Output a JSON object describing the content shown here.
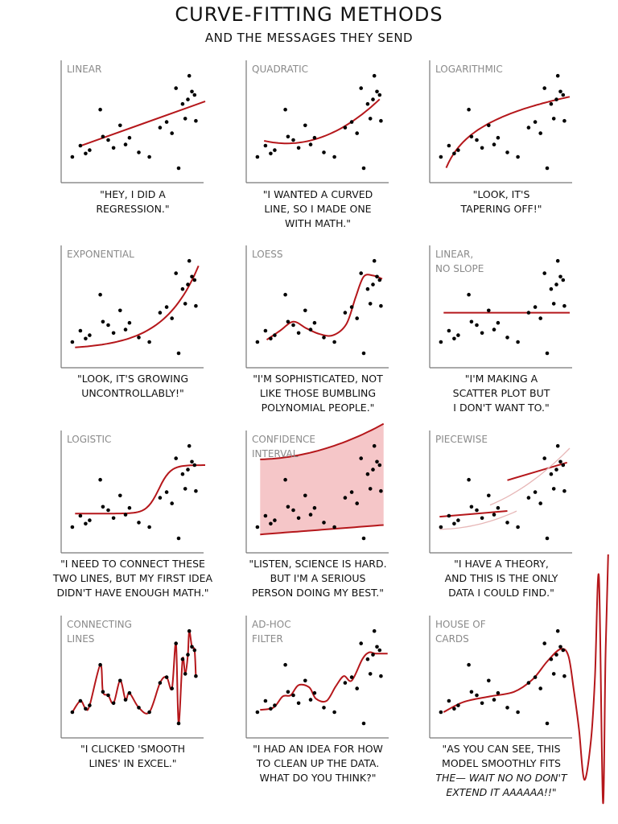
{
  "header": {
    "title": "CURVE-FITTING METHODS",
    "subtitle": "AND THE MESSAGES THEY SEND"
  },
  "colors": {
    "fit_line": "#b5171b",
    "band": "#f5c6c8",
    "points": "#000000",
    "axis": "#777777",
    "label": "#8a8a8a"
  },
  "panels": [
    {
      "label": "LINEAR",
      "caption": [
        "\"HEY, I DID A",
        "REGRESSION.\""
      ],
      "fit": "linear"
    },
    {
      "label": "QUADRATIC",
      "caption": [
        "\"I WANTED A CURVED",
        "LINE, SO I MADE ONE",
        "WITH MATH.\""
      ],
      "fit": "quadratic"
    },
    {
      "label": "LOGARITHMIC",
      "caption": [
        "\"LOOK, IT'S",
        "TAPERING OFF!\""
      ],
      "fit": "logarithmic"
    },
    {
      "label": "EXPONENTIAL",
      "caption": [
        "\"LOOK, IT'S GROWING",
        "UNCONTROLLABLY!\""
      ],
      "fit": "exponential"
    },
    {
      "label": "LOESS",
      "caption": [
        "\"I'M SOPHISTICATED, NOT",
        "LIKE THOSE BUMBLING",
        "POLYNOMIAL PEOPLE.\""
      ],
      "fit": "loess"
    },
    {
      "label": "LINEAR,\nNO SLOPE",
      "caption": [
        "\"I'M MAKING A",
        "SCATTER PLOT BUT",
        "I DON'T WANT TO.\""
      ],
      "fit": "flat"
    },
    {
      "label": "LOGISTIC",
      "caption": [
        "\"I NEED TO CONNECT THESE",
        "TWO LINES, BUT MY FIRST IDEA",
        "DIDN'T HAVE ENOUGH MATH.\""
      ],
      "fit": "logistic"
    },
    {
      "label": "CONFIDENCE\nINTERVAL",
      "caption": [
        "\"LISTEN, SCIENCE IS HARD.",
        "BUT I'M A SERIOUS",
        "PERSON DOING MY BEST.\""
      ],
      "fit": "confidence"
    },
    {
      "label": "PIECEWISE",
      "caption": [
        "\"I HAVE A THEORY,",
        "AND THIS IS THE ONLY",
        "DATA I COULD FIND.\""
      ],
      "fit": "piecewise"
    },
    {
      "label": "CONNECTING\nLINES",
      "caption": [
        "\"I CLICKED 'SMOOTH",
        "LINES' IN EXCEL.\""
      ],
      "fit": "connecting"
    },
    {
      "label": "AD-HOC\nFILTER",
      "caption": [
        "\"I HAD AN IDEA FOR HOW",
        "TO CLEAN UP THE DATA.",
        "WHAT DO YOU THINK?\""
      ],
      "fit": "adhoc"
    },
    {
      "label": "HOUSE OF\nCARDS",
      "caption": [
        "\"AS YOU CAN SEE, THIS",
        "MODEL SMOOTHLY FITS",
        "THE— WAIT NO NO DON'T",
        "EXTEND IT AAAAAA!!\""
      ],
      "fit": "house"
    }
  ],
  "chart_data": {
    "type": "scatter",
    "title": "CURVE-FITTING METHODS",
    "subtitle": "AND THE MESSAGES THEY SEND",
    "xlim": [
      0,
      10
    ],
    "ylim": [
      0,
      10
    ],
    "grid": false,
    "points": [
      [
        0.3,
        2.0
      ],
      [
        0.9,
        3.0
      ],
      [
        1.3,
        2.3
      ],
      [
        1.6,
        2.6
      ],
      [
        2.4,
        6.2
      ],
      [
        2.6,
        3.8
      ],
      [
        3.0,
        3.5
      ],
      [
        3.4,
        2.8
      ],
      [
        3.9,
        4.8
      ],
      [
        4.3,
        3.1
      ],
      [
        4.6,
        3.7
      ],
      [
        5.3,
        2.4
      ],
      [
        6.1,
        2.0
      ],
      [
        6.9,
        4.6
      ],
      [
        7.4,
        5.1
      ],
      [
        7.8,
        4.1
      ],
      [
        8.1,
        8.1
      ],
      [
        8.3,
        1.0
      ],
      [
        8.6,
        6.7
      ],
      [
        8.8,
        5.4
      ],
      [
        9.0,
        7.1
      ],
      [
        9.1,
        9.2
      ],
      [
        9.3,
        7.8
      ],
      [
        9.5,
        7.5
      ],
      [
        9.6,
        5.2
      ]
    ]
  }
}
